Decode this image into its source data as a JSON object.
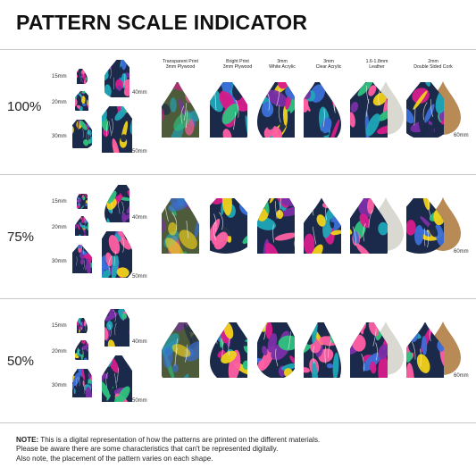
{
  "title": "PATTERN SCALE INDICATOR",
  "materials": [
    {
      "line1": "Transparent Print",
      "line2": "3mm Plywood"
    },
    {
      "line1": "Bright Print",
      "line2": "3mm Plywood"
    },
    {
      "line1": "3mm",
      "line2": "White Acrylic"
    },
    {
      "line1": "3mm",
      "line2": "Clear Acrylic"
    },
    {
      "line1": "1.6-1.8mm",
      "line2": "Leather"
    },
    {
      "line1": "2mm",
      "line2": "Double Sided Cork"
    }
  ],
  "rows": [
    {
      "percent": "100%",
      "sizes": [
        "15mm",
        "20mm",
        "30mm",
        "40mm",
        "50mm"
      ],
      "material_size": "60mm"
    },
    {
      "percent": "75%",
      "sizes": [
        "15mm",
        "20mm",
        "30mm",
        "40mm",
        "50mm"
      ],
      "material_size": "60mm"
    },
    {
      "percent": "50%",
      "sizes": [
        "15mm",
        "20mm",
        "30mm",
        "40mm",
        "50mm"
      ],
      "material_size": "60mm"
    }
  ],
  "note": {
    "label": "NOTE:",
    "line1": " This is a digital representation of how the patterns are printed on the different materials.",
    "line2": "Please be aware there are some characteristics that can't be represented digitally.",
    "line3": "Also note, the placement of the pattern varies on each shape."
  },
  "colors": {
    "teal": "#1fa6b8",
    "magenta": "#d81b8c",
    "purple": "#7b2fa6",
    "yellow": "#f2d21a",
    "navy": "#1b2a4a",
    "leather": "#d9d9d2",
    "cork": "#b88a55",
    "divider": "#c8c8c8"
  }
}
